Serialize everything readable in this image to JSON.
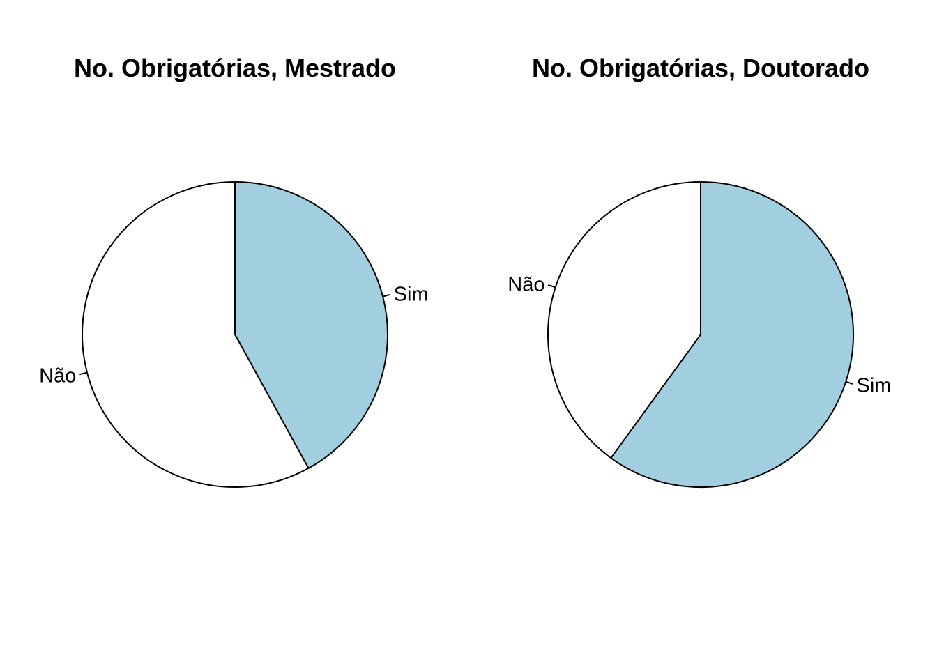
{
  "chart_data": [
    {
      "type": "pie",
      "title": "No. Obrigatórias, Mestrado",
      "categories": [
        "Sim",
        "Não"
      ],
      "values": [
        0.42,
        0.58
      ],
      "colors": [
        "#a1cfe0",
        "#ffffff"
      ],
      "start": "12 o'clock",
      "direction": "clockwise"
    },
    {
      "type": "pie",
      "title": "No. Obrigatórias, Doutorado",
      "categories": [
        "Sim",
        "Não"
      ],
      "values": [
        0.6,
        0.4
      ],
      "colors": [
        "#a1cfe0",
        "#ffffff"
      ],
      "start": "12 o'clock",
      "direction": "clockwise"
    }
  ]
}
